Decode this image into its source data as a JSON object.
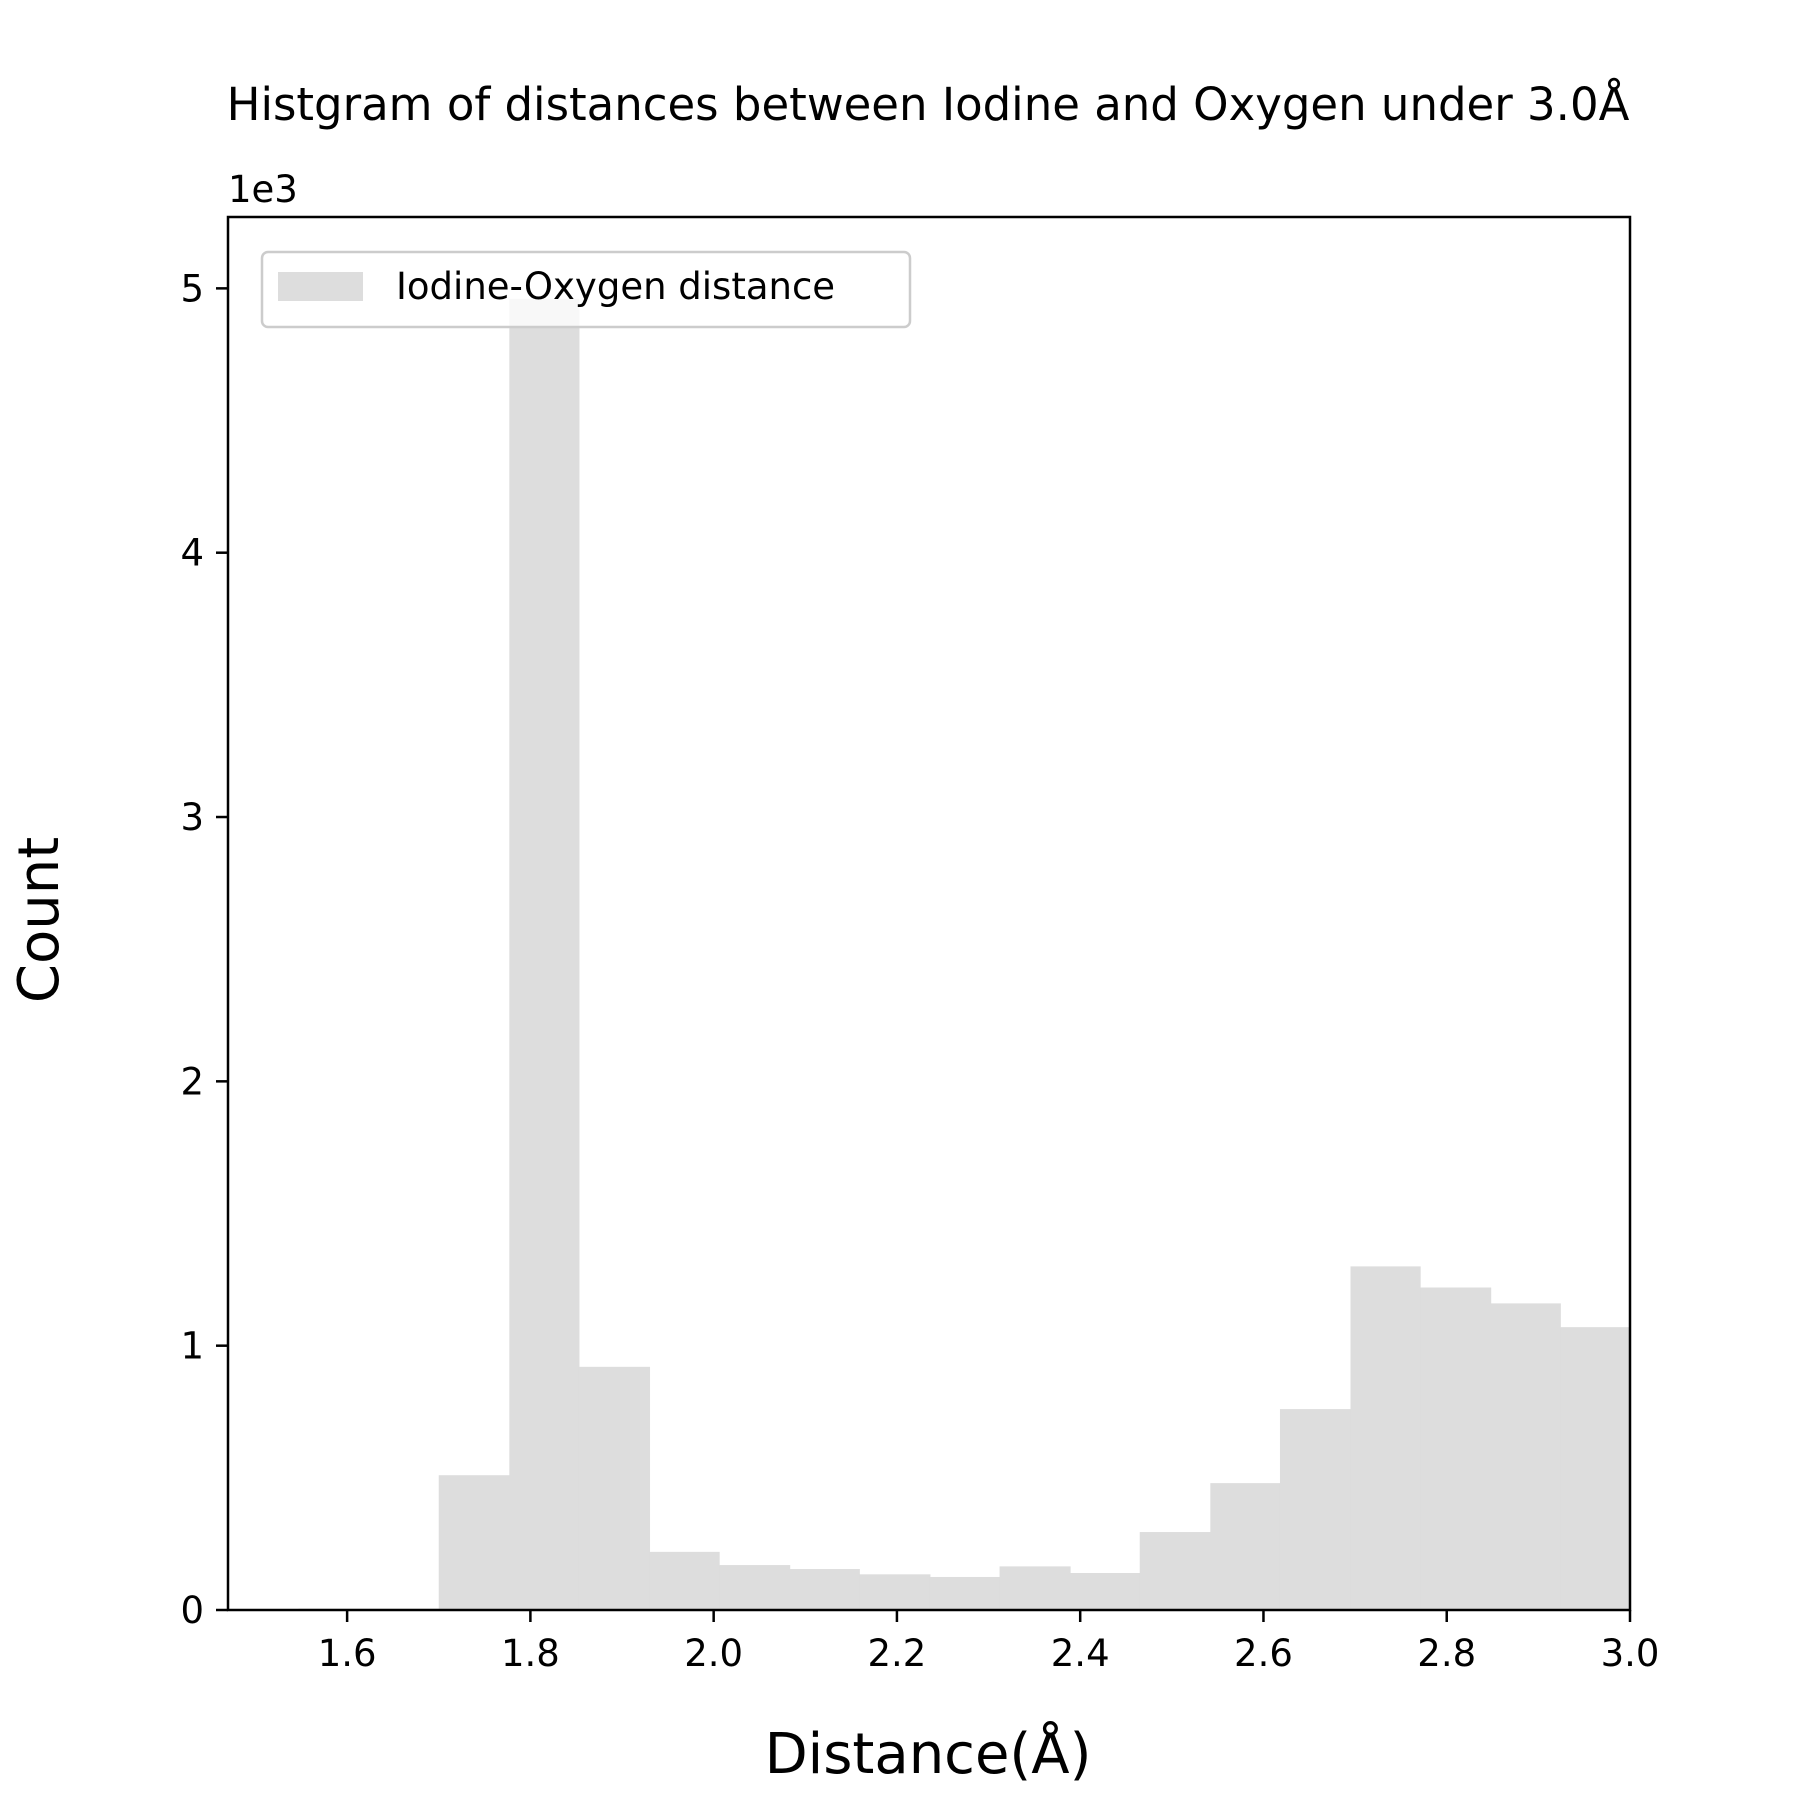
{
  "chart_data": {
    "type": "bar",
    "title": "Histgram of distances between Iodine and Oxygen under 3.0Å",
    "xlabel": "Distance(Å)",
    "ylabel": "Count",
    "y_multiplier_label": "1e3",
    "xlim": [
      1.47,
      3.0
    ],
    "ylim": [
      0,
      5.27
    ],
    "x_ticks": [
      1.6,
      1.8,
      2.0,
      2.2,
      2.4,
      2.6,
      2.8,
      3.0
    ],
    "x_tick_labels": [
      "1.6",
      "1.8",
      "2.0",
      "2.2",
      "2.4",
      "2.6",
      "2.8",
      "3.0"
    ],
    "y_ticks": [
      0,
      1,
      2,
      3,
      4,
      5
    ],
    "y_tick_labels": [
      "0",
      "1",
      "2",
      "3",
      "4",
      "5"
    ],
    "grid": false,
    "legend": {
      "position": "top-left",
      "entries": [
        "Iodine-Oxygen distance"
      ]
    },
    "bar_color": "#dddddd",
    "bins": [
      [
        1.547,
        1.624,
        0.005
      ],
      [
        1.624,
        1.7,
        0.005
      ],
      [
        1.7,
        1.777,
        0.51
      ],
      [
        1.777,
        1.853,
        4.96
      ],
      [
        1.853,
        1.93,
        0.92
      ],
      [
        1.93,
        2.006,
        0.22
      ],
      [
        2.006,
        2.083,
        0.17
      ],
      [
        2.083,
        2.159,
        0.155
      ],
      [
        2.159,
        2.236,
        0.135
      ],
      [
        2.236,
        2.312,
        0.125
      ],
      [
        2.312,
        2.389,
        0.165
      ],
      [
        2.389,
        2.465,
        0.14
      ],
      [
        2.465,
        2.542,
        0.295
      ],
      [
        2.542,
        2.618,
        0.48
      ],
      [
        2.618,
        2.695,
        0.76
      ],
      [
        2.695,
        2.771,
        1.3
      ],
      [
        2.771,
        2.848,
        1.22
      ],
      [
        2.848,
        2.924,
        1.16
      ],
      [
        2.924,
        3.0,
        1.07
      ]
    ]
  }
}
